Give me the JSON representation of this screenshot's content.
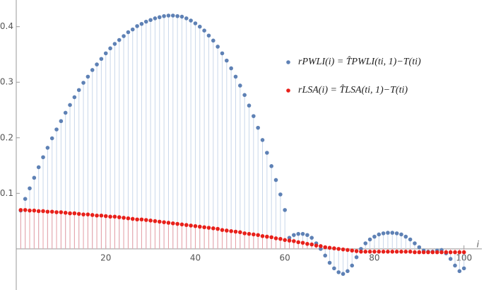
{
  "chart_data": {
    "type": "stem",
    "x_label": "i",
    "x": [
      1,
      2,
      3,
      4,
      5,
      6,
      7,
      8,
      9,
      10,
      11,
      12,
      13,
      14,
      15,
      16,
      17,
      18,
      19,
      20,
      21,
      22,
      23,
      24,
      25,
      26,
      27,
      28,
      29,
      30,
      31,
      32,
      33,
      34,
      35,
      36,
      37,
      38,
      39,
      40,
      41,
      42,
      43,
      44,
      45,
      46,
      47,
      48,
      49,
      50,
      51,
      52,
      53,
      54,
      55,
      56,
      57,
      58,
      59,
      60,
      61,
      62,
      63,
      64,
      65,
      66,
      67,
      68,
      69,
      70,
      71,
      72,
      73,
      74,
      75,
      76,
      77,
      78,
      79,
      80,
      81,
      82,
      83,
      84,
      85,
      86,
      87,
      88,
      89,
      90,
      91,
      92,
      93,
      94,
      95,
      96,
      97,
      98,
      99,
      100
    ],
    "series": [
      {
        "name": "rPWLI(i) = T̂PWLI(ti, 1)−T(ti)",
        "color": "#5e81b5",
        "stem_color": "#c9d7ea",
        "values": [
          0.069,
          0.09,
          0.109,
          0.128,
          0.147,
          0.165,
          0.182,
          0.199,
          0.215,
          0.23,
          0.245,
          0.259,
          0.273,
          0.286,
          0.299,
          0.31,
          0.322,
          0.332,
          0.342,
          0.352,
          0.361,
          0.369,
          0.376,
          0.383,
          0.39,
          0.395,
          0.401,
          0.405,
          0.409,
          0.412,
          0.415,
          0.417,
          0.419,
          0.42,
          0.42,
          0.419,
          0.418,
          0.415,
          0.411,
          0.406,
          0.4,
          0.393,
          0.384,
          0.375,
          0.364,
          0.352,
          0.339,
          0.325,
          0.31,
          0.294,
          0.277,
          0.258,
          0.239,
          0.218,
          0.196,
          0.173,
          0.149,
          0.124,
          0.098,
          0.07,
          0.02,
          0.025,
          0.027,
          0.027,
          0.025,
          0.02,
          0.01,
          0.0,
          -0.012,
          -0.025,
          -0.035,
          -0.042,
          -0.045,
          -0.04,
          -0.03,
          -0.015,
          0.0,
          0.01,
          0.017,
          0.022,
          0.026,
          0.028,
          0.029,
          0.029,
          0.028,
          0.026,
          0.022,
          0.017,
          0.01,
          0.003,
          -0.003,
          -0.005,
          -0.005,
          -0.003,
          -0.002,
          -0.008,
          -0.018,
          -0.03,
          -0.04,
          -0.035
        ]
      },
      {
        "name": "rLSA(i) = T̂LSA(ti, 1)−T(ti)",
        "color": "#e8201a",
        "stem_color": "#e8a0a6",
        "values": [
          0.07,
          0.07,
          0.069,
          0.069,
          0.068,
          0.068,
          0.067,
          0.067,
          0.066,
          0.066,
          0.065,
          0.064,
          0.064,
          0.063,
          0.062,
          0.062,
          0.061,
          0.06,
          0.06,
          0.059,
          0.058,
          0.058,
          0.057,
          0.056,
          0.055,
          0.054,
          0.053,
          0.053,
          0.052,
          0.051,
          0.05,
          0.049,
          0.048,
          0.047,
          0.046,
          0.045,
          0.044,
          0.043,
          0.042,
          0.041,
          0.04,
          0.039,
          0.038,
          0.037,
          0.036,
          0.034,
          0.033,
          0.032,
          0.031,
          0.03,
          0.028,
          0.027,
          0.026,
          0.025,
          0.023,
          0.022,
          0.021,
          0.019,
          0.018,
          0.016,
          0.015,
          0.014,
          0.012,
          0.011,
          0.009,
          0.008,
          0.006,
          0.005,
          0.003,
          0.002,
          0.001,
          0.0,
          -0.001,
          -0.002,
          -0.003,
          -0.004,
          -0.005,
          -0.005,
          -0.005,
          -0.005,
          -0.005,
          -0.005,
          -0.005,
          -0.005,
          -0.005,
          -0.005,
          -0.005,
          -0.005,
          -0.006,
          -0.006,
          -0.006,
          -0.006,
          -0.006,
          -0.006,
          -0.006,
          -0.006,
          -0.006,
          -0.006,
          -0.006,
          -0.006
        ]
      }
    ],
    "xlim": [
      0,
      104
    ],
    "ylim": [
      -0.074,
      0.448
    ],
    "xticks": [
      20,
      40,
      60,
      80,
      100
    ],
    "yticks": [
      0.1,
      0.2,
      0.3,
      0.4
    ]
  }
}
